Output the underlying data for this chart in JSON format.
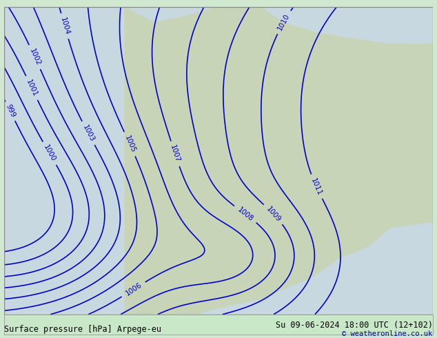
{
  "title_left": "Surface pressure [hPa] Arpege-eu",
  "title_right": "Su 09-06-2024 18:00 UTC (12+102)",
  "credit": "© weatheronline.co.uk",
  "bg_color": "#d0e8d0",
  "land_color": "#c8d8c0",
  "sea_color": "#b0c8d8",
  "contour_color": "#0000cc",
  "label_color": "#0000cc",
  "bottom_bar_color": "#c8e8c8",
  "bottom_text_color": "#000000",
  "figsize": [
    6.34,
    4.9
  ],
  "dpi": 100
}
